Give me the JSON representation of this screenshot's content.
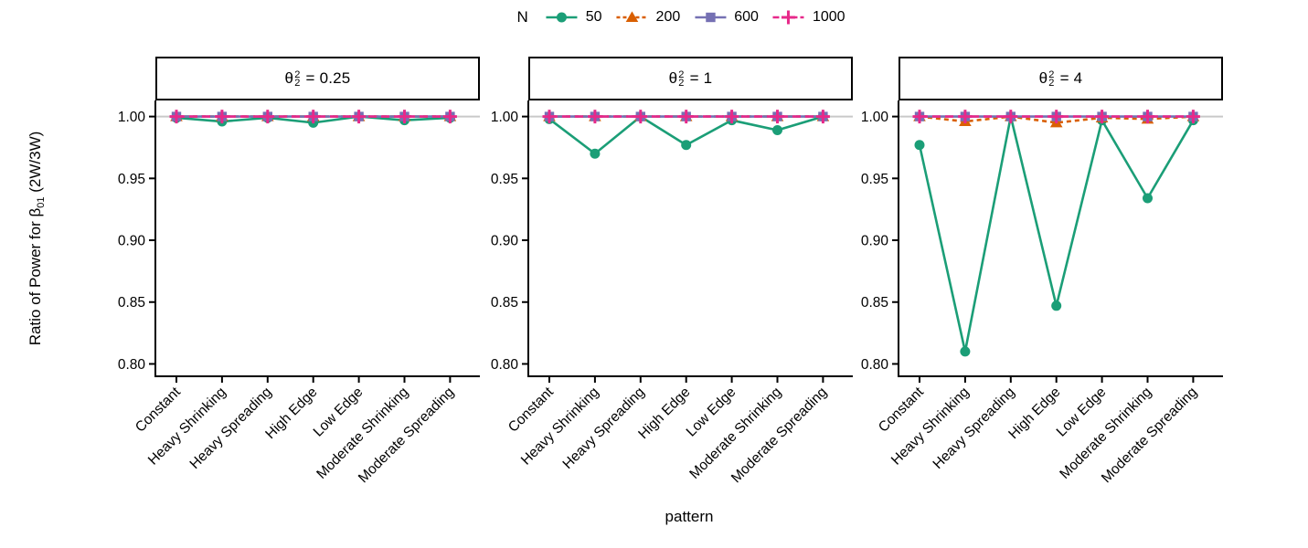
{
  "chart_data": {
    "type": "line",
    "title": "",
    "xlabel": "pattern",
    "ylabel": "Ratio of Power for β01 (2W/3W)",
    "ylabel_parts": {
      "prefix": "Ratio of Power for ",
      "beta": "β",
      "beta_sub": "01",
      "suffix": " (2W/3W)"
    },
    "legend": {
      "title": "N",
      "position": "top"
    },
    "categories": [
      "Constant",
      "Heavy Shrinking",
      "Heavy Spreading",
      "High Edge",
      "Low Edge",
      "Moderate Shrinking",
      "Moderate Spreading"
    ],
    "yticks": [
      1.0,
      0.95,
      0.9,
      0.85,
      0.8
    ],
    "ylim": [
      0.79,
      1.013
    ],
    "ref_line": 1.0,
    "grid": "off",
    "series_styles": [
      {
        "name": "50",
        "color": "#1b9e77",
        "marker": "circle",
        "dash": "solid"
      },
      {
        "name": "200",
        "color": "#d95f02",
        "marker": "triangle",
        "dash": "dashed"
      },
      {
        "name": "600",
        "color": "#7570b3",
        "marker": "square",
        "dash": "solid"
      },
      {
        "name": "1000",
        "color": "#e7298a",
        "marker": "plus",
        "dash": "longdash"
      }
    ],
    "facet_symbol": {
      "theta": "θ",
      "sup": "2",
      "sub": "2"
    },
    "facets": [
      {
        "label": "θ²₂ = 0.25",
        "eq_value": "= 0.25",
        "series": [
          {
            "name": "50",
            "values": [
              0.999,
              0.996,
              0.999,
              0.995,
              1.0,
              0.997,
              0.999
            ]
          },
          {
            "name": "200",
            "values": [
              1.0,
              1.0,
              1.0,
              1.0,
              1.0,
              1.0,
              1.0
            ]
          },
          {
            "name": "600",
            "values": [
              1.0,
              1.0,
              1.0,
              1.0,
              1.0,
              1.0,
              1.0
            ]
          },
          {
            "name": "1000",
            "values": [
              1.0,
              1.0,
              1.0,
              1.0,
              1.0,
              1.0,
              1.0
            ]
          }
        ]
      },
      {
        "label": "θ²₂ = 1",
        "eq_value": "= 1",
        "series": [
          {
            "name": "50",
            "values": [
              0.998,
              0.97,
              1.0,
              0.977,
              0.997,
              0.989,
              1.0
            ]
          },
          {
            "name": "200",
            "values": [
              1.0,
              1.0,
              1.0,
              1.0,
              1.0,
              1.0,
              1.0
            ]
          },
          {
            "name": "600",
            "values": [
              1.0,
              1.0,
              1.0,
              1.0,
              1.0,
              1.0,
              1.0
            ]
          },
          {
            "name": "1000",
            "values": [
              1.0,
              1.0,
              1.0,
              1.0,
              1.0,
              1.0,
              1.0
            ]
          }
        ]
      },
      {
        "label": "θ²₂ = 4",
        "eq_value": "= 4",
        "series": [
          {
            "name": "50",
            "values": [
              0.977,
              0.81,
              1.0,
              0.847,
              0.997,
              0.934,
              0.997
            ]
          },
          {
            "name": "200",
            "values": [
              1.0,
              0.996,
              1.0,
              0.995,
              0.999,
              0.998,
              1.0
            ]
          },
          {
            "name": "600",
            "values": [
              1.0,
              1.0,
              1.0,
              1.0,
              1.0,
              1.0,
              1.0
            ]
          },
          {
            "name": "1000",
            "values": [
              1.0,
              1.0,
              1.0,
              1.0,
              1.0,
              1.0,
              1.0
            ]
          }
        ]
      }
    ]
  }
}
